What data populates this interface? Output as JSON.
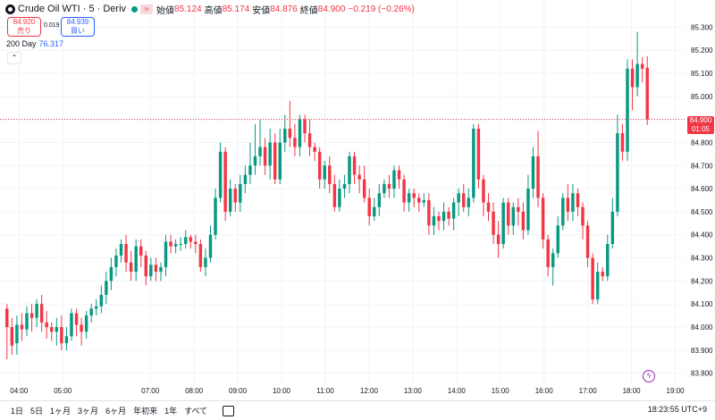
{
  "header": {
    "symbol": "Crude Oil WTI · 5 · Deriv",
    "wave_icon": "≈",
    "open_label": "始値",
    "open": "85.124",
    "high_label": "高値",
    "high": "85.174",
    "low_label": "安値",
    "low": "84.876",
    "close_label": "終値",
    "close": "84.900",
    "change": "−0.219 (−0.26%)"
  },
  "trade": {
    "sell_price": "84.920",
    "sell_label": "売り",
    "spread": "0.019",
    "buy_price": "84.939",
    "buy_label": "買い"
  },
  "indicator": {
    "name": "200 Day",
    "value": "76.317"
  },
  "collapse_icon": "chevron-up-icon",
  "price_axis": [
    "85.300",
    "85.200",
    "85.100",
    "85.000",
    "84.900",
    "84.800",
    "84.700",
    "84.600",
    "84.500",
    "84.400",
    "84.300",
    "84.200",
    "84.100",
    "84.000",
    "83.900",
    "83.800"
  ],
  "time_axis": [
    "04:00",
    "05:00",
    "07:00",
    "08:00",
    "09:00",
    "10:00",
    "11:00",
    "12:00",
    "13:00",
    "14:00",
    "15:00",
    "16:00",
    "17:00",
    "18:00",
    "19:00"
  ],
  "last_price": {
    "price": "84.900",
    "countdown": "01:05"
  },
  "timeframes": [
    "1日",
    "5日",
    "1ヶ月",
    "3ヶ月",
    "6ヶ月",
    "年初来",
    "1年",
    "すべて"
  ],
  "clock": "18:23:55 UTC+9",
  "colors": {
    "up": "#089981",
    "down": "#f23645",
    "text": "#131722",
    "grid": "#f0f3fa"
  },
  "chart_data": {
    "type": "candlestick",
    "x_range": [
      "03:40",
      "18:25"
    ],
    "ylim": [
      83.76,
      85.34
    ],
    "candles": [
      [
        84.08,
        84.0,
        83.86,
        84.1
      ],
      [
        84.0,
        83.92,
        83.88,
        84.04
      ],
      [
        83.93,
        84.01,
        83.88,
        84.05
      ],
      [
        84.01,
        83.99,
        83.94,
        84.06
      ],
      [
        83.99,
        84.06,
        83.96,
        84.09
      ],
      [
        84.06,
        84.04,
        83.98,
        84.1
      ],
      [
        84.04,
        84.1,
        84.0,
        84.12
      ],
      [
        84.1,
        84.02,
        83.98,
        84.14
      ],
      [
        84.02,
        84.0,
        83.95,
        84.07
      ],
      [
        84.0,
        83.98,
        83.94,
        84.02
      ],
      [
        83.98,
        84.0,
        83.92,
        84.04
      ],
      [
        84.0,
        83.93,
        83.9,
        84.05
      ],
      [
        83.93,
        83.96,
        83.9,
        84.0
      ],
      [
        83.96,
        84.06,
        83.94,
        84.08
      ],
      [
        84.06,
        84.01,
        83.96,
        84.08
      ],
      [
        84.01,
        83.98,
        83.92,
        84.04
      ],
      [
        83.98,
        84.05,
        83.95,
        84.07
      ],
      [
        84.05,
        84.08,
        84.02,
        84.1
      ],
      [
        84.08,
        84.09,
        84.05,
        84.12
      ],
      [
        84.09,
        84.14,
        84.06,
        84.18
      ],
      [
        84.14,
        84.2,
        84.1,
        84.24
      ],
      [
        84.2,
        84.26,
        84.16,
        84.3
      ],
      [
        84.26,
        84.31,
        84.22,
        84.34
      ],
      [
        84.31,
        84.36,
        84.28,
        84.38
      ],
      [
        84.36,
        84.28,
        84.24,
        84.4
      ],
      [
        84.28,
        84.24,
        84.2,
        84.33
      ],
      [
        84.24,
        84.35,
        84.2,
        84.38
      ],
      [
        84.35,
        84.31,
        84.26,
        84.38
      ],
      [
        84.31,
        84.22,
        84.18,
        84.33
      ],
      [
        84.22,
        84.27,
        84.2,
        84.3
      ],
      [
        84.27,
        84.24,
        84.2,
        84.3
      ],
      [
        84.24,
        84.26,
        84.2,
        84.28
      ],
      [
        84.26,
        84.37,
        84.22,
        84.4
      ],
      [
        84.37,
        84.35,
        84.32,
        84.4
      ],
      [
        84.35,
        84.36,
        84.32,
        84.38
      ],
      [
        84.36,
        84.36,
        84.33,
        84.39
      ],
      [
        84.36,
        84.39,
        84.34,
        84.42
      ],
      [
        84.39,
        84.37,
        84.34,
        84.4
      ],
      [
        84.37,
        84.36,
        84.32,
        84.4
      ],
      [
        84.36,
        84.26,
        84.24,
        84.38
      ],
      [
        84.26,
        84.3,
        84.22,
        84.34
      ],
      [
        84.3,
        84.4,
        84.28,
        84.44
      ],
      [
        84.4,
        84.56,
        84.38,
        84.6
      ],
      [
        84.56,
        84.76,
        84.54,
        84.8
      ],
      [
        84.76,
        84.5,
        84.46,
        84.78
      ],
      [
        84.5,
        84.6,
        84.48,
        84.64
      ],
      [
        84.6,
        84.54,
        84.5,
        84.62
      ],
      [
        84.54,
        84.62,
        84.5,
        84.66
      ],
      [
        84.62,
        84.66,
        84.58,
        84.7
      ],
      [
        84.66,
        84.7,
        84.62,
        84.8
      ],
      [
        84.7,
        84.74,
        84.66,
        84.88
      ],
      [
        84.74,
        84.78,
        84.7,
        84.9
      ],
      [
        84.78,
        84.7,
        84.66,
        84.82
      ],
      [
        84.7,
        84.8,
        84.64,
        84.86
      ],
      [
        84.8,
        84.64,
        84.62,
        84.84
      ],
      [
        84.64,
        84.8,
        84.62,
        84.86
      ],
      [
        84.8,
        84.86,
        84.76,
        84.92
      ],
      [
        84.86,
        84.82,
        84.78,
        84.98
      ],
      [
        84.82,
        84.78,
        84.74,
        84.88
      ],
      [
        84.78,
        84.9,
        84.74,
        84.92
      ],
      [
        84.9,
        84.84,
        84.8,
        84.92
      ],
      [
        84.84,
        84.78,
        84.74,
        84.9
      ],
      [
        84.78,
        84.76,
        84.72,
        84.8
      ],
      [
        84.76,
        84.64,
        84.6,
        84.78
      ],
      [
        84.64,
        84.7,
        84.6,
        84.72
      ],
      [
        84.7,
        84.62,
        84.58,
        84.74
      ],
      [
        84.62,
        84.52,
        84.5,
        84.66
      ],
      [
        84.52,
        84.6,
        84.5,
        84.64
      ],
      [
        84.6,
        84.62,
        84.56,
        84.66
      ],
      [
        84.62,
        84.74,
        84.58,
        84.76
      ],
      [
        84.74,
        84.66,
        84.62,
        84.76
      ],
      [
        84.66,
        84.64,
        84.58,
        84.7
      ],
      [
        84.64,
        84.56,
        84.54,
        84.7
      ],
      [
        84.56,
        84.48,
        84.44,
        84.6
      ],
      [
        84.48,
        84.52,
        84.46,
        84.56
      ],
      [
        84.52,
        84.58,
        84.48,
        84.62
      ],
      [
        84.58,
        84.62,
        84.56,
        84.64
      ],
      [
        84.62,
        84.6,
        84.56,
        84.66
      ],
      [
        84.6,
        84.68,
        84.56,
        84.7
      ],
      [
        84.68,
        84.64,
        84.6,
        84.7
      ],
      [
        84.64,
        84.54,
        84.5,
        84.66
      ],
      [
        84.54,
        84.58,
        84.5,
        84.6
      ],
      [
        84.58,
        84.56,
        84.52,
        84.6
      ],
      [
        84.56,
        84.54,
        84.5,
        84.58
      ],
      [
        84.54,
        84.55,
        84.52,
        84.58
      ],
      [
        84.55,
        84.44,
        84.4,
        84.58
      ],
      [
        84.44,
        84.48,
        84.4,
        84.52
      ],
      [
        84.48,
        84.46,
        84.42,
        84.5
      ],
      [
        84.46,
        84.5,
        84.42,
        84.54
      ],
      [
        84.5,
        84.47,
        84.44,
        84.52
      ],
      [
        84.47,
        84.54,
        84.42,
        84.56
      ],
      [
        84.54,
        84.58,
        84.48,
        84.6
      ],
      [
        84.58,
        84.52,
        84.5,
        84.62
      ],
      [
        84.52,
        84.56,
        84.48,
        84.6
      ],
      [
        84.56,
        84.86,
        84.54,
        84.88
      ],
      [
        84.86,
        84.64,
        84.6,
        84.88
      ],
      [
        84.64,
        84.54,
        84.48,
        84.66
      ],
      [
        84.54,
        84.5,
        84.46,
        84.58
      ],
      [
        84.5,
        84.4,
        84.36,
        84.54
      ],
      [
        84.4,
        84.36,
        84.3,
        84.46
      ],
      [
        84.36,
        84.54,
        84.34,
        84.56
      ],
      [
        84.54,
        84.44,
        84.4,
        84.56
      ],
      [
        84.44,
        84.52,
        84.4,
        84.54
      ],
      [
        84.52,
        84.5,
        84.44,
        84.56
      ],
      [
        84.5,
        84.42,
        84.38,
        84.54
      ],
      [
        84.42,
        84.6,
        84.4,
        84.66
      ],
      [
        84.6,
        84.74,
        84.56,
        84.78
      ],
      [
        84.74,
        84.56,
        84.52,
        84.85
      ],
      [
        84.56,
        84.38,
        84.34,
        84.58
      ],
      [
        84.38,
        84.26,
        84.22,
        84.4
      ],
      [
        84.26,
        84.32,
        84.18,
        84.34
      ],
      [
        84.32,
        84.44,
        84.3,
        84.48
      ],
      [
        84.44,
        84.56,
        84.42,
        84.58
      ],
      [
        84.56,
        84.5,
        84.46,
        84.62
      ],
      [
        84.5,
        84.58,
        84.46,
        84.62
      ],
      [
        84.58,
        84.52,
        84.48,
        84.6
      ],
      [
        84.52,
        84.44,
        84.38,
        84.54
      ],
      [
        84.44,
        84.3,
        84.26,
        84.46
      ],
      [
        84.3,
        84.12,
        84.1,
        84.32
      ],
      [
        84.12,
        84.24,
        84.1,
        84.28
      ],
      [
        84.24,
        84.22,
        84.2,
        84.26
      ],
      [
        84.22,
        84.36,
        84.2,
        84.4
      ],
      [
        84.36,
        84.5,
        84.34,
        84.56
      ],
      [
        84.5,
        84.84,
        84.48,
        84.92
      ],
      [
        84.84,
        84.76,
        84.72,
        84.88
      ],
      [
        84.76,
        85.12,
        84.72,
        85.16
      ],
      [
        85.12,
        85.04,
        84.94,
        85.16
      ],
      [
        85.04,
        85.14,
        85.0,
        85.28
      ],
      [
        85.14,
        85.12,
        85.06,
        85.17
      ],
      [
        85.124,
        84.9,
        84.876,
        85.174
      ]
    ]
  }
}
